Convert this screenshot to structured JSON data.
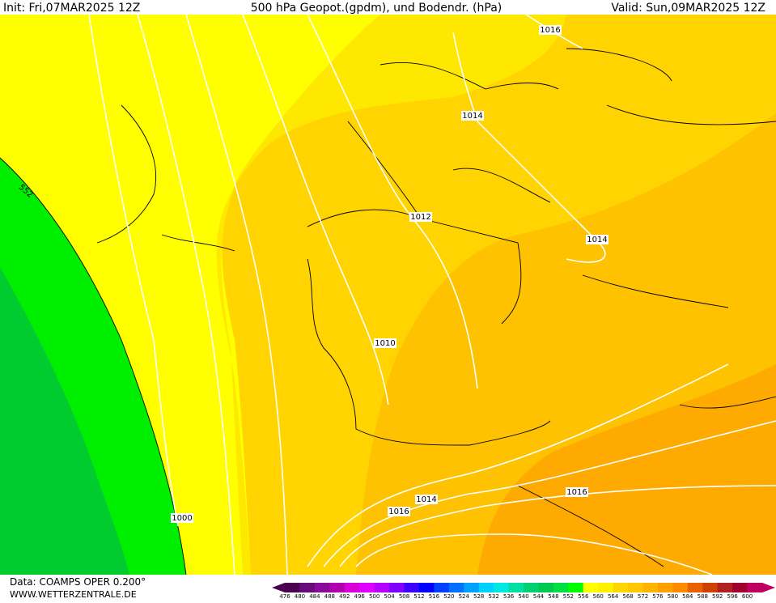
{
  "header": {
    "init": "Init: Fri,07MAR2025 12Z",
    "title": "500 hPa Geopot.(gpdm), und Bodendr. (hPa)",
    "valid": "Valid: Sun,09MAR2025 12Z"
  },
  "map": {
    "isobar_labels": [
      "1016",
      "1014",
      "1012",
      "1014",
      "1010",
      "1014",
      "1016",
      "1016",
      "1000"
    ],
    "height_labels": [
      "552"
    ]
  },
  "footer": {
    "source": "Data: COAMPS OPER 0.200°",
    "site": "WWW.WETTERZENTRALE.DE"
  },
  "scale": {
    "values": [
      476,
      480,
      484,
      488,
      492,
      496,
      500,
      504,
      508,
      512,
      516,
      520,
      524,
      528,
      532,
      536,
      540,
      544,
      548,
      552,
      556,
      560,
      564,
      568,
      572,
      576,
      580,
      584,
      588,
      592,
      596,
      600
    ],
    "colors": [
      "#4b0050",
      "#6a0a7a",
      "#8a0a9a",
      "#b000b0",
      "#d800d8",
      "#e000ff",
      "#b400ff",
      "#8000ff",
      "#3c00ff",
      "#0000ff",
      "#0040ff",
      "#0070ff",
      "#00a0ff",
      "#00d0ff",
      "#00e8e0",
      "#00e0a0",
      "#00d070",
      "#00c850",
      "#00e040",
      "#00ff00",
      "#ffff00",
      "#fff000",
      "#ffd700",
      "#ffc800",
      "#ffb400",
      "#ffa000",
      "#ff8c00",
      "#e86000",
      "#d04000",
      "#b02020",
      "#a00030",
      "#c00060"
    ]
  }
}
